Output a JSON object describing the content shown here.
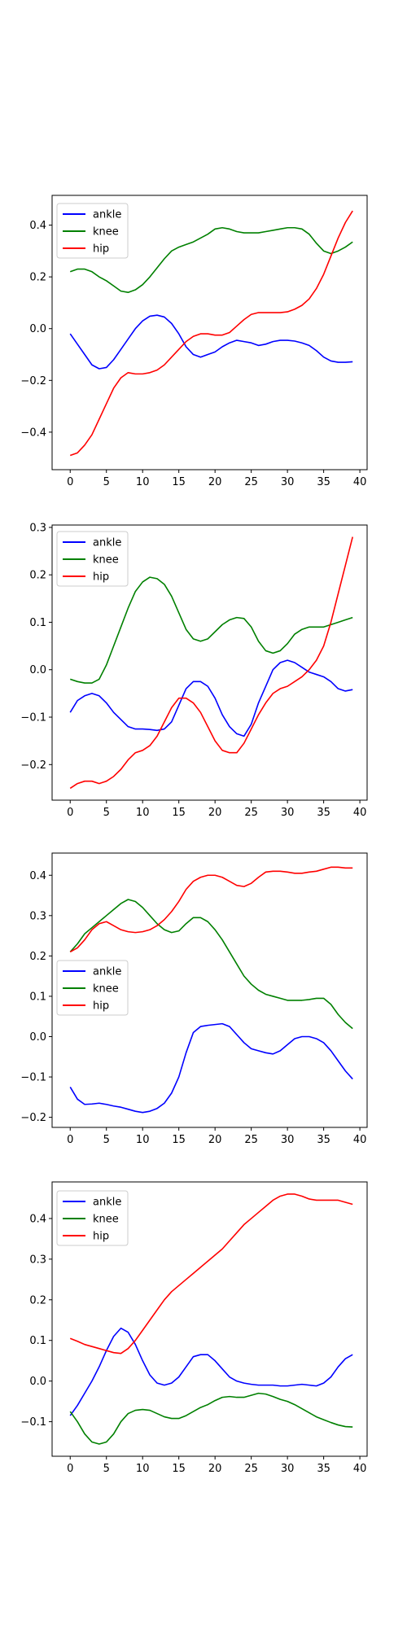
{
  "chart_data": [
    {
      "type": "line",
      "x": [
        0,
        1,
        2,
        3,
        4,
        5,
        6,
        7,
        8,
        9,
        10,
        11,
        12,
        13,
        14,
        15,
        16,
        17,
        18,
        19,
        20,
        21,
        22,
        23,
        24,
        25,
        26,
        27,
        28,
        29,
        30,
        31,
        32,
        33,
        34,
        35,
        36,
        37,
        38,
        39
      ],
      "xlim": [
        -2.5,
        41.0
      ],
      "xticks": [
        0,
        5,
        10,
        15,
        20,
        25,
        30,
        35,
        40
      ],
      "ylim": [
        -0.545,
        0.515
      ],
      "yticks": [
        -0.4,
        -0.2,
        0.0,
        0.2,
        0.4
      ],
      "ytick_labels": [
        "−0.4",
        "−0.2",
        "0.0",
        "0.2",
        "0.4"
      ],
      "legend_position": "upper left",
      "series": [
        {
          "name": "ankle",
          "color": "#0000ff",
          "values": [
            -0.02,
            -0.06,
            -0.1,
            -0.14,
            -0.155,
            -0.15,
            -0.12,
            -0.08,
            -0.04,
            0.0,
            0.03,
            0.048,
            0.052,
            0.045,
            0.02,
            -0.02,
            -0.07,
            -0.1,
            -0.11,
            -0.1,
            -0.09,
            -0.07,
            -0.055,
            -0.045,
            -0.05,
            -0.055,
            -0.065,
            -0.06,
            -0.05,
            -0.045,
            -0.045,
            -0.048,
            -0.055,
            -0.065,
            -0.085,
            -0.11,
            -0.125,
            -0.13,
            -0.13,
            -0.128
          ]
        },
        {
          "name": "knee",
          "color": "#008000",
          "values": [
            0.22,
            0.23,
            0.23,
            0.22,
            0.2,
            0.185,
            0.165,
            0.145,
            0.14,
            0.15,
            0.17,
            0.2,
            0.235,
            0.27,
            0.3,
            0.315,
            0.325,
            0.335,
            0.35,
            0.365,
            0.385,
            0.39,
            0.385,
            0.375,
            0.37,
            0.37,
            0.37,
            0.375,
            0.38,
            0.385,
            0.39,
            0.39,
            0.385,
            0.365,
            0.33,
            0.3,
            0.29,
            0.3,
            0.315,
            0.335
          ]
        },
        {
          "name": "hip",
          "color": "#ff0000",
          "values": [
            -0.49,
            -0.48,
            -0.45,
            -0.41,
            -0.35,
            -0.29,
            -0.23,
            -0.19,
            -0.17,
            -0.175,
            -0.175,
            -0.17,
            -0.16,
            -0.14,
            -0.11,
            -0.08,
            -0.05,
            -0.03,
            -0.02,
            -0.02,
            -0.025,
            -0.025,
            -0.015,
            0.01,
            0.035,
            0.055,
            0.062,
            0.062,
            0.062,
            0.062,
            0.065,
            0.075,
            0.09,
            0.115,
            0.155,
            0.21,
            0.28,
            0.35,
            0.41,
            0.455
          ]
        }
      ]
    },
    {
      "type": "line",
      "x": [
        0,
        1,
        2,
        3,
        4,
        5,
        6,
        7,
        8,
        9,
        10,
        11,
        12,
        13,
        14,
        15,
        16,
        17,
        18,
        19,
        20,
        21,
        22,
        23,
        24,
        25,
        26,
        27,
        28,
        29,
        30,
        31,
        32,
        33,
        34,
        35,
        36,
        37,
        38,
        39
      ],
      "xlim": [
        -2.5,
        41.0
      ],
      "xticks": [
        0,
        5,
        10,
        15,
        20,
        25,
        30,
        35,
        40
      ],
      "ylim": [
        -0.275,
        0.305
      ],
      "yticks": [
        -0.2,
        -0.1,
        0.0,
        0.1,
        0.2,
        0.3
      ],
      "ytick_labels": [
        "−0.2",
        "−0.1",
        "0.0",
        "0.1",
        "0.2",
        "0.3"
      ],
      "legend_position": "upper left",
      "series": [
        {
          "name": "ankle",
          "color": "#0000ff",
          "values": [
            -0.09,
            -0.065,
            -0.055,
            -0.05,
            -0.055,
            -0.07,
            -0.09,
            -0.105,
            -0.12,
            -0.125,
            -0.125,
            -0.126,
            -0.128,
            -0.125,
            -0.11,
            -0.075,
            -0.04,
            -0.025,
            -0.025,
            -0.035,
            -0.06,
            -0.095,
            -0.12,
            -0.135,
            -0.14,
            -0.115,
            -0.07,
            -0.035,
            0.0,
            0.015,
            0.02,
            0.015,
            0.005,
            -0.005,
            -0.01,
            -0.015,
            -0.025,
            -0.04,
            -0.045,
            -0.042
          ]
        },
        {
          "name": "knee",
          "color": "#008000",
          "values": [
            -0.02,
            -0.025,
            -0.028,
            -0.028,
            -0.02,
            0.01,
            0.05,
            0.09,
            0.13,
            0.165,
            0.185,
            0.195,
            0.192,
            0.18,
            0.155,
            0.12,
            0.085,
            0.065,
            0.06,
            0.065,
            0.08,
            0.095,
            0.105,
            0.11,
            0.108,
            0.09,
            0.06,
            0.04,
            0.035,
            0.04,
            0.055,
            0.075,
            0.085,
            0.09,
            0.09,
            0.09,
            0.095,
            0.1,
            0.105,
            0.11
          ]
        },
        {
          "name": "hip",
          "color": "#ff0000",
          "values": [
            -0.25,
            -0.24,
            -0.235,
            -0.235,
            -0.24,
            -0.235,
            -0.225,
            -0.21,
            -0.19,
            -0.175,
            -0.17,
            -0.16,
            -0.14,
            -0.11,
            -0.08,
            -0.06,
            -0.06,
            -0.07,
            -0.09,
            -0.12,
            -0.15,
            -0.17,
            -0.175,
            -0.175,
            -0.155,
            -0.125,
            -0.095,
            -0.07,
            -0.05,
            -0.04,
            -0.035,
            -0.025,
            -0.015,
            0.0,
            0.02,
            0.05,
            0.1,
            0.16,
            0.22,
            0.28
          ]
        }
      ]
    },
    {
      "type": "line",
      "x": [
        0,
        1,
        2,
        3,
        4,
        5,
        6,
        7,
        8,
        9,
        10,
        11,
        12,
        13,
        14,
        15,
        16,
        17,
        18,
        19,
        20,
        21,
        22,
        23,
        24,
        25,
        26,
        27,
        28,
        29,
        30,
        31,
        32,
        33,
        34,
        35,
        36,
        37,
        38,
        39
      ],
      "xlim": [
        -2.5,
        41.0
      ],
      "xticks": [
        0,
        5,
        10,
        15,
        20,
        25,
        30,
        35,
        40
      ],
      "ylim": [
        -0.225,
        0.455
      ],
      "yticks": [
        -0.2,
        -0.1,
        0.0,
        0.1,
        0.2,
        0.3,
        0.4
      ],
      "ytick_labels": [
        "−0.2",
        "−0.1",
        "0.0",
        "0.1",
        "0.2",
        "0.3",
        "0.4"
      ],
      "legend_position": "center left",
      "series": [
        {
          "name": "ankle",
          "color": "#0000ff",
          "values": [
            -0.125,
            -0.155,
            -0.168,
            -0.167,
            -0.165,
            -0.168,
            -0.172,
            -0.175,
            -0.18,
            -0.185,
            -0.188,
            -0.185,
            -0.178,
            -0.165,
            -0.14,
            -0.1,
            -0.04,
            0.01,
            0.025,
            0.028,
            0.03,
            0.032,
            0.025,
            0.005,
            -0.015,
            -0.03,
            -0.035,
            -0.04,
            -0.043,
            -0.035,
            -0.02,
            -0.005,
            0.0,
            0.0,
            -0.005,
            -0.015,
            -0.035,
            -0.06,
            -0.085,
            -0.105
          ]
        },
        {
          "name": "knee",
          "color": "#008000",
          "values": [
            0.21,
            0.23,
            0.255,
            0.27,
            0.285,
            0.3,
            0.315,
            0.33,
            0.34,
            0.335,
            0.32,
            0.3,
            0.28,
            0.265,
            0.258,
            0.262,
            0.28,
            0.295,
            0.295,
            0.285,
            0.265,
            0.24,
            0.21,
            0.18,
            0.15,
            0.13,
            0.115,
            0.105,
            0.1,
            0.095,
            0.09,
            0.09,
            0.09,
            0.092,
            0.095,
            0.095,
            0.08,
            0.055,
            0.035,
            0.02
          ]
        },
        {
          "name": "hip",
          "color": "#ff0000",
          "values": [
            0.21,
            0.22,
            0.24,
            0.265,
            0.28,
            0.285,
            0.275,
            0.265,
            0.26,
            0.258,
            0.26,
            0.265,
            0.275,
            0.29,
            0.31,
            0.335,
            0.365,
            0.385,
            0.395,
            0.4,
            0.4,
            0.395,
            0.385,
            0.375,
            0.372,
            0.38,
            0.395,
            0.408,
            0.41,
            0.41,
            0.408,
            0.405,
            0.405,
            0.408,
            0.41,
            0.415,
            0.42,
            0.42,
            0.418,
            0.418
          ]
        }
      ]
    },
    {
      "type": "line",
      "x": [
        0,
        1,
        2,
        3,
        4,
        5,
        6,
        7,
        8,
        9,
        10,
        11,
        12,
        13,
        14,
        15,
        16,
        17,
        18,
        19,
        20,
        21,
        22,
        23,
        24,
        25,
        26,
        27,
        28,
        29,
        30,
        31,
        32,
        33,
        34,
        35,
        36,
        37,
        38,
        39
      ],
      "xlim": [
        -2.5,
        41.0
      ],
      "xticks": [
        0,
        5,
        10,
        15,
        20,
        25,
        30,
        35,
        40
      ],
      "ylim": [
        -0.185,
        0.49
      ],
      "yticks": [
        -0.1,
        0.0,
        0.1,
        0.2,
        0.3,
        0.4
      ],
      "ytick_labels": [
        "−0.1",
        "0.0",
        "0.1",
        "0.2",
        "0.3",
        "0.4"
      ],
      "legend_position": "upper left",
      "series": [
        {
          "name": "ankle",
          "color": "#0000ff",
          "values": [
            -0.085,
            -0.06,
            -0.03,
            0.0,
            0.035,
            0.075,
            0.11,
            0.13,
            0.12,
            0.09,
            0.05,
            0.015,
            -0.005,
            -0.01,
            -0.005,
            0.01,
            0.035,
            0.06,
            0.065,
            0.065,
            0.05,
            0.03,
            0.01,
            0.0,
            -0.005,
            -0.008,
            -0.01,
            -0.01,
            -0.01,
            -0.012,
            -0.012,
            -0.01,
            -0.008,
            -0.01,
            -0.012,
            -0.005,
            0.01,
            0.035,
            0.055,
            0.065
          ]
        },
        {
          "name": "knee",
          "color": "#008000",
          "values": [
            -0.075,
            -0.1,
            -0.13,
            -0.15,
            -0.155,
            -0.15,
            -0.13,
            -0.1,
            -0.08,
            -0.072,
            -0.07,
            -0.072,
            -0.08,
            -0.088,
            -0.092,
            -0.092,
            -0.085,
            -0.075,
            -0.065,
            -0.058,
            -0.048,
            -0.04,
            -0.038,
            -0.04,
            -0.04,
            -0.035,
            -0.03,
            -0.032,
            -0.038,
            -0.045,
            -0.05,
            -0.058,
            -0.068,
            -0.078,
            -0.088,
            -0.095,
            -0.102,
            -0.108,
            -0.112,
            -0.113
          ]
        },
        {
          "name": "hip",
          "color": "#ff0000",
          "values": [
            0.105,
            0.098,
            0.09,
            0.085,
            0.08,
            0.075,
            0.07,
            0.068,
            0.08,
            0.1,
            0.125,
            0.15,
            0.175,
            0.2,
            0.22,
            0.235,
            0.25,
            0.265,
            0.28,
            0.295,
            0.31,
            0.325,
            0.345,
            0.365,
            0.385,
            0.4,
            0.415,
            0.43,
            0.445,
            0.455,
            0.46,
            0.46,
            0.455,
            0.448,
            0.445,
            0.445,
            0.445,
            0.445,
            0.44,
            0.435
          ]
        }
      ]
    }
  ]
}
